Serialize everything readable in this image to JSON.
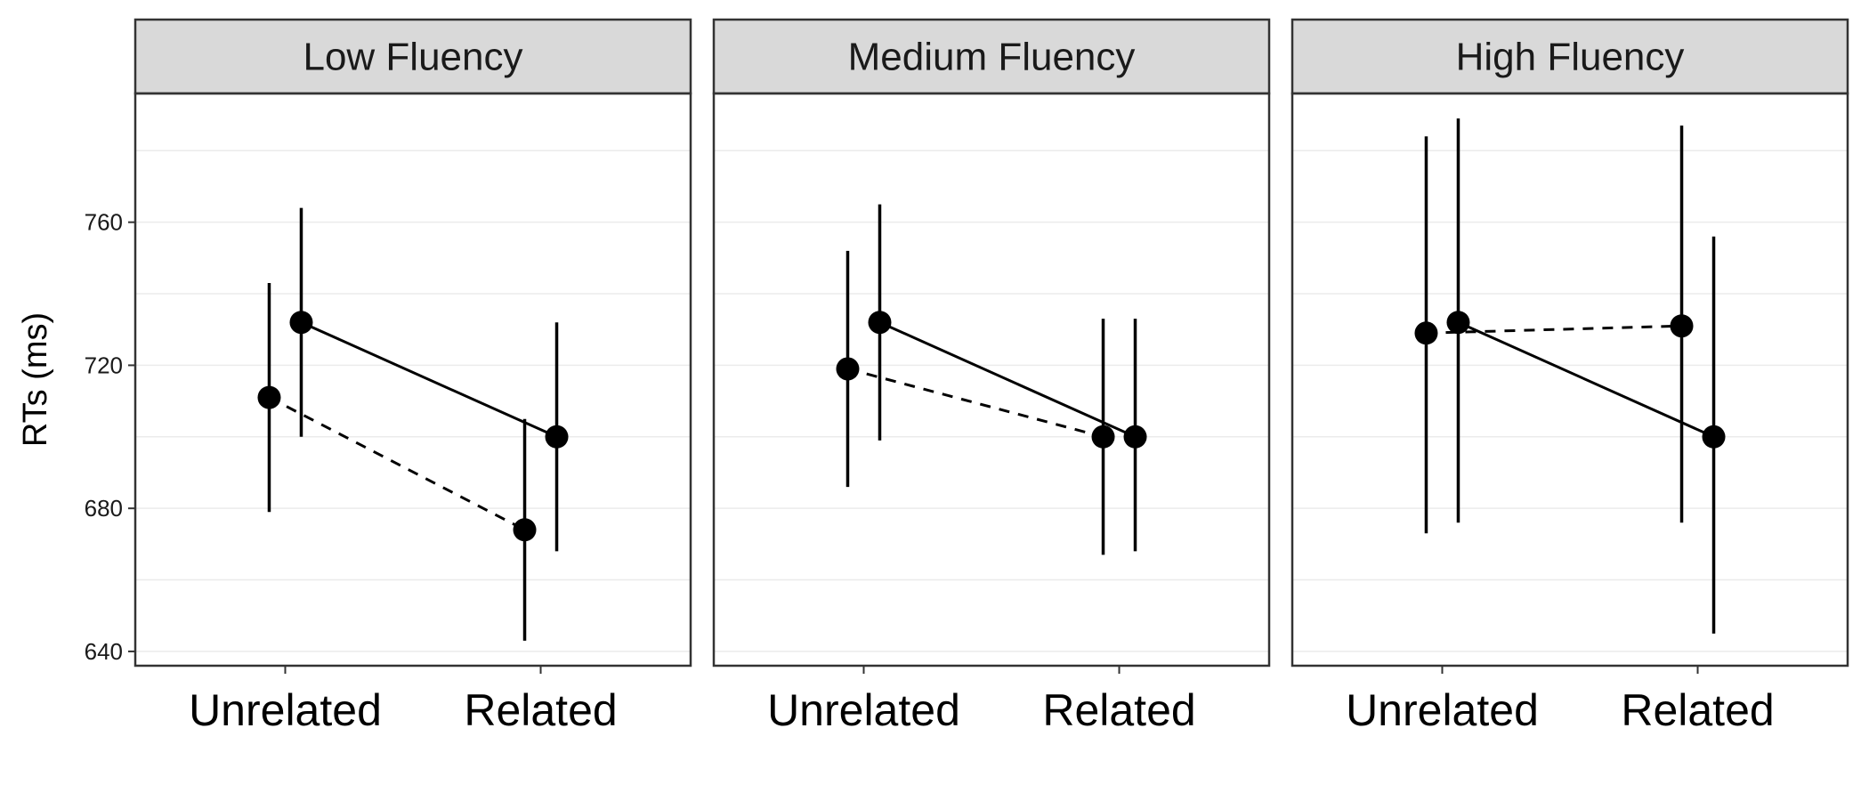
{
  "chart_data": {
    "type": "line",
    "ylabel": "RTs (ms)",
    "xlabel": "",
    "ylim": [
      636,
      796
    ],
    "yticks": [
      640,
      680,
      720,
      760
    ],
    "gridlines": [
      660,
      700,
      740,
      780
    ],
    "categories": [
      "Unrelated",
      "Related"
    ],
    "series": [
      {
        "style": "dashed",
        "offset": "left"
      },
      {
        "style": "solid",
        "offset": "right"
      }
    ],
    "panels": [
      {
        "title": "Low Fluency",
        "series": [
          {
            "values": [
              711,
              674
            ],
            "lower": [
              679,
              643
            ],
            "upper": [
              743,
              705
            ]
          },
          {
            "values": [
              732,
              700
            ],
            "lower": [
              700,
              668
            ],
            "upper": [
              764,
              732
            ]
          }
        ]
      },
      {
        "title": "Medium Fluency",
        "series": [
          {
            "values": [
              719,
              700
            ],
            "lower": [
              686,
              667
            ],
            "upper": [
              752,
              733
            ]
          },
          {
            "values": [
              732,
              700
            ],
            "lower": [
              699,
              668
            ],
            "upper": [
              765,
              733
            ]
          }
        ]
      },
      {
        "title": "High Fluency",
        "series": [
          {
            "values": [
              729,
              731
            ],
            "lower": [
              673,
              676
            ],
            "upper": [
              784,
              787
            ]
          },
          {
            "values": [
              732,
              700
            ],
            "lower": [
              676,
              645
            ],
            "upper": [
              789,
              756
            ]
          }
        ]
      }
    ],
    "colors": {
      "panel_border": "#333333",
      "strip_fill": "#d9d9d9",
      "grid": "#ebebeb",
      "marks": "#000000"
    },
    "grid": true,
    "legend": "none"
  }
}
